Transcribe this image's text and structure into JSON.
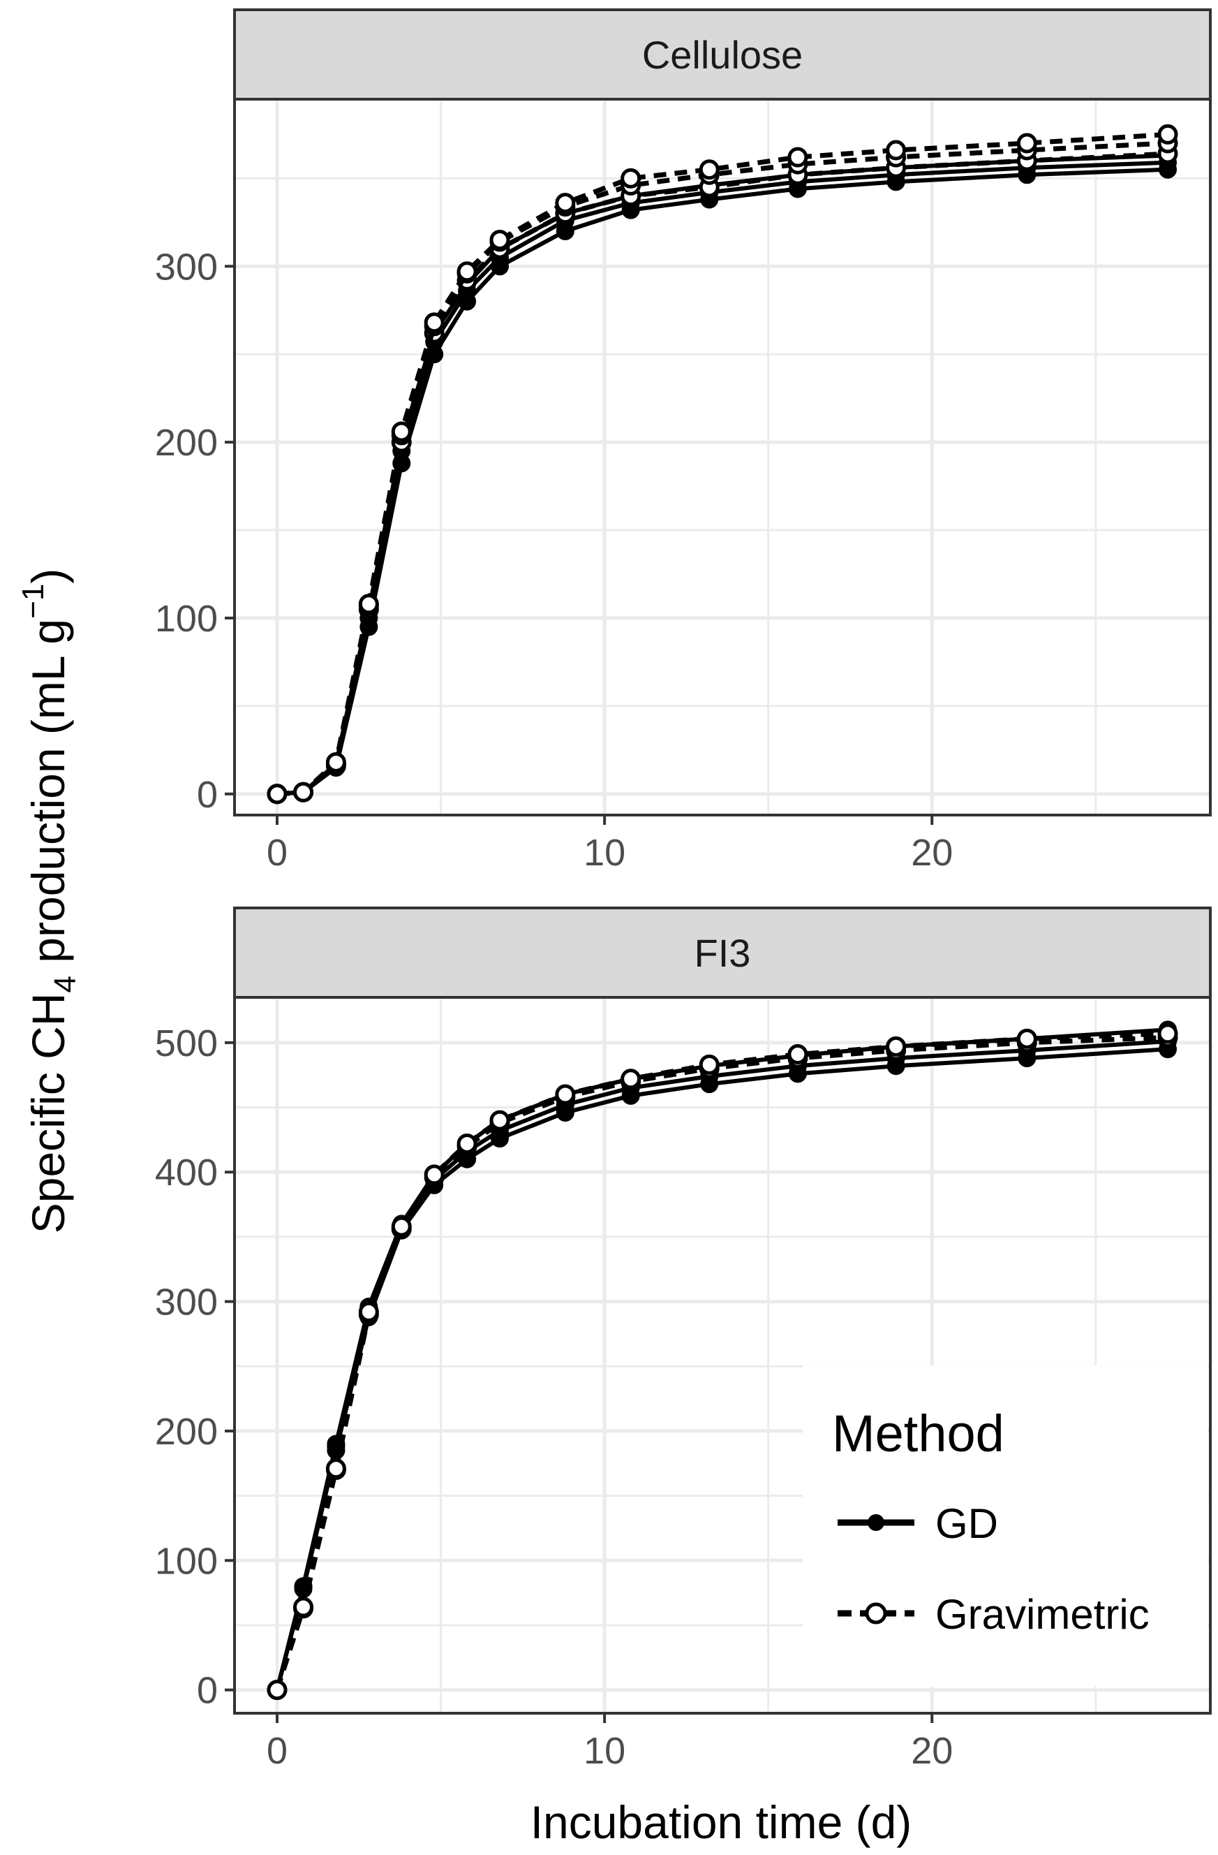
{
  "chart_data": {
    "type": "line",
    "ylabel_main": "Specific CH",
    "ylabel_sub": "4",
    "ylabel_mid": " production (mL g",
    "ylabel_sup": "−1",
    "ylabel_end": ")",
    "xlabel": "Incubation time (d)",
    "xlim": [
      -1.3,
      28.5
    ],
    "x_ticks": [
      "0",
      "10",
      "20"
    ],
    "legend": {
      "title": "Method",
      "entries": [
        {
          "key": "GD",
          "label": "GD",
          "style": "solid, filled circles"
        },
        {
          "key": "Gravimetric",
          "label": "Gravimetric",
          "style": "dashed, open circles"
        }
      ],
      "placement": "bottom-right of lower panel"
    },
    "colors": {
      "line": "#000000",
      "strip": "#d9d9d9",
      "grid": "#ebebeb"
    },
    "panels": [
      {
        "title": "Cellulose",
        "ylim": [
          -12,
          395
        ],
        "y_ticks": [
          "0",
          "100",
          "200",
          "300"
        ],
        "x": [
          0,
          0.8,
          1.8,
          2.8,
          3.8,
          4.8,
          5.8,
          6.8,
          8.8,
          10.8,
          13.2,
          15.9,
          18.9,
          22.9,
          27.2
        ],
        "series": [
          {
            "method": "GD",
            "values": [
              0,
              1,
              15,
              95,
              188,
              250,
              280,
              300,
              320,
              332,
              338,
              344,
              348,
              352,
              355
            ]
          },
          {
            "method": "GD",
            "values": [
              0,
              1,
              16,
              100,
              195,
              257,
              286,
              305,
              326,
              336,
              342,
              348,
              352,
              356,
              359
            ]
          },
          {
            "method": "GD",
            "values": [
              0,
              1,
              17,
              104,
              200,
              262,
              290,
              310,
              330,
              340,
              346,
              352,
              356,
              360,
              363
            ]
          },
          {
            "method": "Gravimetric",
            "values": [
              0,
              1,
              16,
              105,
              200,
              262,
              292,
              310,
              330,
              340,
              345,
              352,
              356,
              360,
              364
            ]
          },
          {
            "method": "Gravimetric",
            "values": [
              0,
              1,
              17,
              107,
              204,
              266,
              296,
              314,
              334,
              346,
              352,
              358,
              362,
              366,
              370
            ]
          },
          {
            "method": "Gravimetric",
            "values": [
              0,
              1,
              18,
              108,
              206,
              268,
              297,
              315,
              336,
              350,
              355,
              362,
              366,
              370,
              375
            ]
          }
        ]
      },
      {
        "title": "FI3",
        "ylim": [
          -18,
          535
        ],
        "y_ticks": [
          "0",
          "100",
          "200",
          "300",
          "400",
          "500"
        ],
        "x": [
          0,
          0.8,
          1.8,
          2.8,
          3.8,
          4.8,
          5.8,
          6.8,
          8.8,
          10.8,
          13.2,
          15.9,
          18.9,
          22.9,
          27.2
        ],
        "series": [
          {
            "method": "GD",
            "values": [
              0,
              78,
              185,
              288,
              355,
              390,
              410,
              426,
              446,
              459,
              468,
              476,
              482,
              488,
              495
            ]
          },
          {
            "method": "GD",
            "values": [
              0,
              80,
              188,
              292,
              358,
              394,
              416,
              432,
              452,
              465,
              474,
              482,
              488,
              494,
              501
            ]
          },
          {
            "method": "GD",
            "values": [
              0,
              80,
              190,
              296,
              360,
              398,
              422,
              440,
              460,
              472,
              482,
              490,
              497,
              503,
              510
            ]
          },
          {
            "method": "Gravimetric",
            "values": [
              0,
              63,
              170,
              290,
              356,
              396,
              420,
              438,
              458,
              470,
              480,
              488,
              494,
              500,
              504
            ]
          },
          {
            "method": "Gravimetric",
            "values": [
              0,
              64,
              171,
              292,
              358,
              398,
              422,
              440,
              460,
              472,
              483,
              491,
              497,
              503,
              507
            ]
          }
        ]
      }
    ]
  }
}
